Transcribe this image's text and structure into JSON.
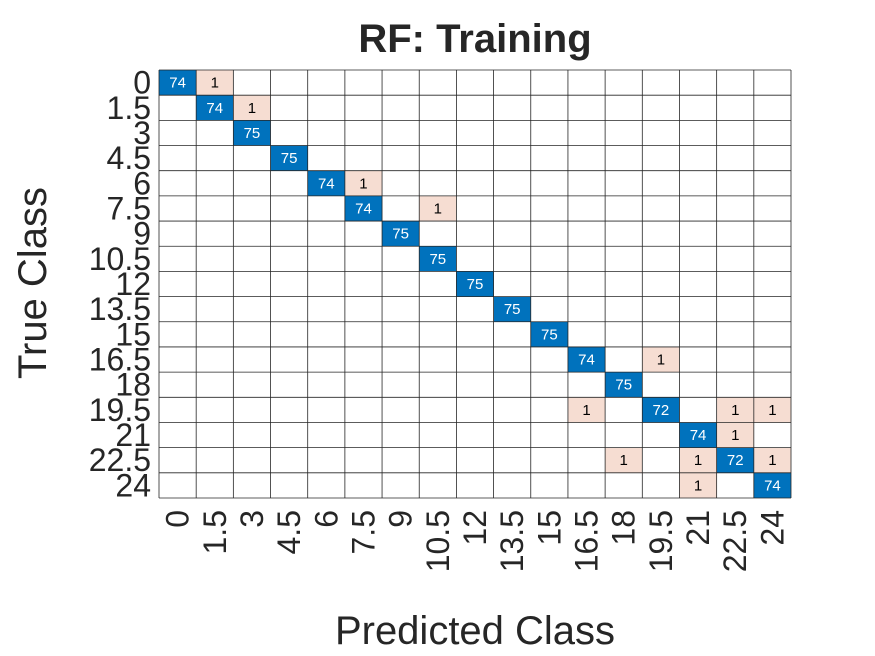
{
  "chart_data": {
    "type": "heatmap",
    "title": "RF: Training",
    "xlabel": "Predicted Class",
    "ylabel": "True Class",
    "classes": [
      "0",
      "1.5",
      "3",
      "4.5",
      "6",
      "7.5",
      "9",
      "10.5",
      "12",
      "13.5",
      "15",
      "16.5",
      "18",
      "19.5",
      "21",
      "22.5",
      "24"
    ],
    "matrix": [
      [
        74,
        1,
        0,
        0,
        0,
        0,
        0,
        0,
        0,
        0,
        0,
        0,
        0,
        0,
        0,
        0,
        0
      ],
      [
        0,
        74,
        1,
        0,
        0,
        0,
        0,
        0,
        0,
        0,
        0,
        0,
        0,
        0,
        0,
        0,
        0
      ],
      [
        0,
        0,
        75,
        0,
        0,
        0,
        0,
        0,
        0,
        0,
        0,
        0,
        0,
        0,
        0,
        0,
        0
      ],
      [
        0,
        0,
        0,
        75,
        0,
        0,
        0,
        0,
        0,
        0,
        0,
        0,
        0,
        0,
        0,
        0,
        0
      ],
      [
        0,
        0,
        0,
        0,
        74,
        1,
        0,
        0,
        0,
        0,
        0,
        0,
        0,
        0,
        0,
        0,
        0
      ],
      [
        0,
        0,
        0,
        0,
        0,
        74,
        0,
        1,
        0,
        0,
        0,
        0,
        0,
        0,
        0,
        0,
        0
      ],
      [
        0,
        0,
        0,
        0,
        0,
        0,
        75,
        0,
        0,
        0,
        0,
        0,
        0,
        0,
        0,
        0,
        0
      ],
      [
        0,
        0,
        0,
        0,
        0,
        0,
        0,
        75,
        0,
        0,
        0,
        0,
        0,
        0,
        0,
        0,
        0
      ],
      [
        0,
        0,
        0,
        0,
        0,
        0,
        0,
        0,
        75,
        0,
        0,
        0,
        0,
        0,
        0,
        0,
        0
      ],
      [
        0,
        0,
        0,
        0,
        0,
        0,
        0,
        0,
        0,
        75,
        0,
        0,
        0,
        0,
        0,
        0,
        0
      ],
      [
        0,
        0,
        0,
        0,
        0,
        0,
        0,
        0,
        0,
        0,
        75,
        0,
        0,
        0,
        0,
        0,
        0
      ],
      [
        0,
        0,
        0,
        0,
        0,
        0,
        0,
        0,
        0,
        0,
        0,
        74,
        0,
        1,
        0,
        0,
        0
      ],
      [
        0,
        0,
        0,
        0,
        0,
        0,
        0,
        0,
        0,
        0,
        0,
        0,
        75,
        0,
        0,
        0,
        0
      ],
      [
        0,
        0,
        0,
        0,
        0,
        0,
        0,
        0,
        0,
        0,
        0,
        1,
        0,
        72,
        0,
        1,
        1
      ],
      [
        0,
        0,
        0,
        0,
        0,
        0,
        0,
        0,
        0,
        0,
        0,
        0,
        0,
        0,
        74,
        1,
        0
      ],
      [
        0,
        0,
        0,
        0,
        0,
        0,
        0,
        0,
        0,
        0,
        0,
        0,
        1,
        0,
        1,
        72,
        1
      ],
      [
        0,
        0,
        0,
        0,
        0,
        0,
        0,
        0,
        0,
        0,
        0,
        0,
        0,
        0,
        1,
        0,
        74
      ]
    ],
    "colors": {
      "diagonal": "#0072bd",
      "off_diagonal": "#f6ddd2",
      "diagonal_text": "#ffffff",
      "off_diagonal_text": "#000000",
      "grid": "#262626",
      "axis_text": "#262626"
    }
  }
}
